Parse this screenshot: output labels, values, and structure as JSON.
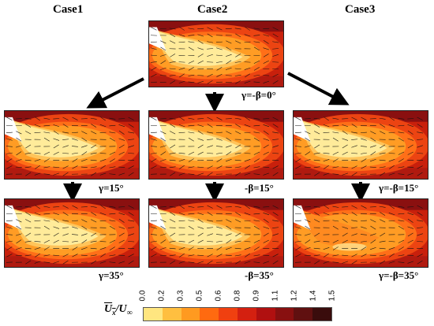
{
  "columns": [
    "Case1",
    "Case2",
    "Case3"
  ],
  "top_panel": {
    "label": "γ=-β=0°"
  },
  "row1": [
    {
      "label": ""
    },
    {
      "label": ""
    },
    {
      "label": ""
    }
  ],
  "row2": [
    {
      "label": "γ=15°"
    },
    {
      "label": "-β=15°"
    },
    {
      "label": "γ=-β=15°"
    }
  ],
  "row3": [
    {
      "label": "γ=35°"
    },
    {
      "label": "-β=35°"
    },
    {
      "label": "γ=-β=35°"
    }
  ],
  "legend": {
    "symbol_num": "U",
    "symbol_sub": "x",
    "symbol_den": "/U",
    "symbol_den_sub": "∞",
    "ticks": [
      "0.0",
      "0.2",
      "0.3",
      "0.5",
      "0.6",
      "0.8",
      "0.9",
      "1.1",
      "1.2",
      "1.4",
      "1.5"
    ],
    "colors": [
      "#ffe680",
      "#ffbf40",
      "#ff9a20",
      "#ff6a10",
      "#f04010",
      "#d42010",
      "#b01010",
      "#881010",
      "#601010",
      "#3a0c0c"
    ]
  }
}
